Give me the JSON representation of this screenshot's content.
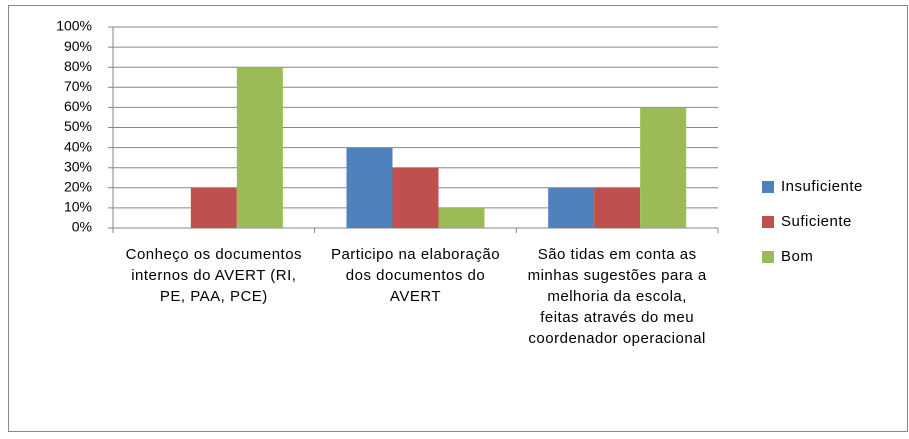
{
  "chart_data": {
    "type": "bar",
    "categories": [
      "Conheço os documentos internos do AVERT (RI, PE, PAA, PCE)",
      "Participo na elaboração dos documentos do AVERT",
      "São tidas em conta as minhas sugestões para a melhoria da escola, feitas através do meu coordenador operacional"
    ],
    "series": [
      {
        "name": "Insuficiente",
        "color": "#4f81bd",
        "values": [
          0,
          40,
          20
        ]
      },
      {
        "name": "Suficiente",
        "color": "#c0504d",
        "values": [
          20,
          30,
          20
        ]
      },
      {
        "name": "Bom",
        "color": "#9bbb59",
        "values": [
          80,
          10,
          60
        ]
      }
    ],
    "ylim": [
      0,
      100
    ],
    "yticks": [
      {
        "value": 0,
        "label": "0%"
      },
      {
        "value": 10,
        "label": "10%"
      },
      {
        "value": 20,
        "label": "20%"
      },
      {
        "value": 30,
        "label": "30%"
      },
      {
        "value": 40,
        "label": "40%"
      },
      {
        "value": 50,
        "label": "50%"
      },
      {
        "value": 60,
        "label": "60%"
      },
      {
        "value": 70,
        "label": "70%"
      },
      {
        "value": 80,
        "label": "80%"
      },
      {
        "value": 90,
        "label": "90%"
      },
      {
        "value": 100,
        "label": "100%"
      }
    ],
    "grid": true,
    "legend": "right"
  }
}
